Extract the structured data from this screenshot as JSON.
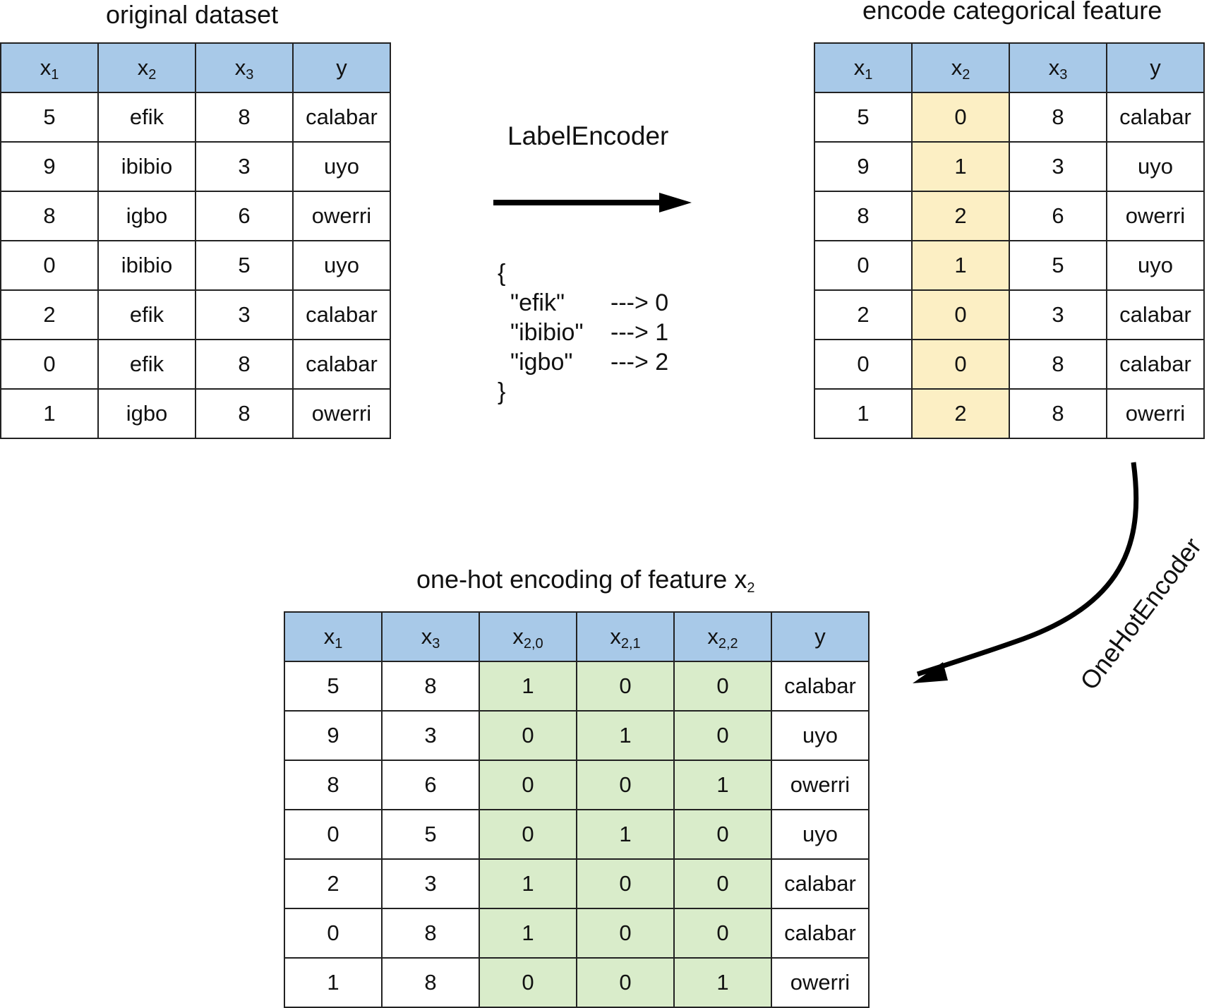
{
  "original": {
    "title": "original dataset",
    "headers": [
      {
        "base": "x",
        "sub": "1"
      },
      {
        "base": "x",
        "sub": "2"
      },
      {
        "base": "x",
        "sub": "3"
      },
      {
        "base": "y",
        "sub": ""
      }
    ],
    "rows": [
      [
        "5",
        "efik",
        "8",
        "calabar"
      ],
      [
        "9",
        "ibibio",
        "3",
        "uyo"
      ],
      [
        "8",
        "igbo",
        "6",
        "owerri"
      ],
      [
        "0",
        "ibibio",
        "5",
        "uyo"
      ],
      [
        "2",
        "efik",
        "3",
        "calabar"
      ],
      [
        "0",
        "efik",
        "8",
        "calabar"
      ],
      [
        "1",
        "igbo",
        "8",
        "owerri"
      ]
    ]
  },
  "label_encoder": {
    "label": "LabelEncoder",
    "open_brace": "{",
    "close_brace": "}",
    "mapping": [
      {
        "key": "\"efik\"",
        "value": "---> 0"
      },
      {
        "key": "\"ibibio\"",
        "value": "---> 1"
      },
      {
        "key": "\"igbo\"",
        "value": "---> 2"
      }
    ]
  },
  "encoded": {
    "title": "encode categorical feature",
    "headers": [
      {
        "base": "x",
        "sub": "1"
      },
      {
        "base": "x",
        "sub": "2"
      },
      {
        "base": "x",
        "sub": "3"
      },
      {
        "base": "y",
        "sub": ""
      }
    ],
    "highlight_color": "#fcefc4",
    "rows": [
      [
        "5",
        "0",
        "8",
        "calabar"
      ],
      [
        "9",
        "1",
        "3",
        "uyo"
      ],
      [
        "8",
        "2",
        "6",
        "owerri"
      ],
      [
        "0",
        "1",
        "5",
        "uyo"
      ],
      [
        "2",
        "0",
        "3",
        "calabar"
      ],
      [
        "0",
        "0",
        "8",
        "calabar"
      ],
      [
        "1",
        "2",
        "8",
        "owerri"
      ]
    ]
  },
  "onehot_encoder": {
    "label": "OneHotEncoder"
  },
  "onehot": {
    "title": "one-hot encoding of feature x",
    "title_sub": "2",
    "headers": [
      {
        "base": "x",
        "sub": "1"
      },
      {
        "base": "x",
        "sub": "3"
      },
      {
        "base": "x",
        "sub": "2,0"
      },
      {
        "base": "x",
        "sub": "2,1"
      },
      {
        "base": "x",
        "sub": "2,2"
      },
      {
        "base": "y",
        "sub": ""
      }
    ],
    "highlight_color": "#d9ecca",
    "rows": [
      [
        "5",
        "8",
        "1",
        "0",
        "0",
        "calabar"
      ],
      [
        "9",
        "3",
        "0",
        "1",
        "0",
        "uyo"
      ],
      [
        "8",
        "6",
        "0",
        "0",
        "1",
        "owerri"
      ],
      [
        "0",
        "5",
        "0",
        "1",
        "0",
        "uyo"
      ],
      [
        "2",
        "3",
        "1",
        "0",
        "0",
        "calabar"
      ],
      [
        "0",
        "8",
        "1",
        "0",
        "0",
        "calabar"
      ],
      [
        "1",
        "8",
        "0",
        "0",
        "1",
        "owerri"
      ]
    ]
  },
  "colors": {
    "header": "#a8c9e8",
    "arrow": "#000000"
  }
}
